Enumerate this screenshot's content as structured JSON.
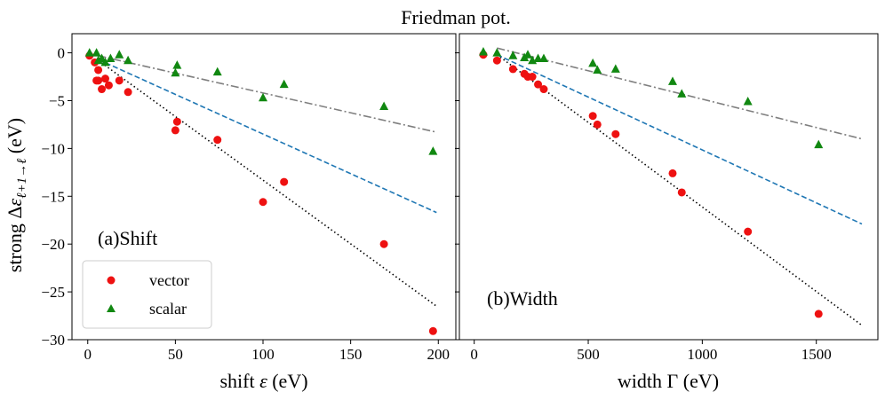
{
  "figure": {
    "suptitle": "Friedman pot.",
    "ylabel": "strong Δεℓ+1→ℓ (eV)",
    "legend": {
      "entries": [
        "vector",
        "scalar"
      ],
      "location": "lower-left"
    },
    "colors": {
      "vector": "#ee1111",
      "scalar": "#118811",
      "fit_vector": "#000000",
      "fit_mid": "#1f77b4",
      "fit_scalar": "#7f7f7f"
    }
  },
  "chart_data": [
    {
      "type": "scatter",
      "panel_label": "(a)Shift",
      "xlabel": "shift ε (eV)",
      "ylabel": "strong Δεℓ+1→ℓ (eV)",
      "xlim": [
        -9,
        210
      ],
      "ylim": [
        -30,
        2
      ],
      "xticks": [
        0,
        50,
        100,
        150,
        200
      ],
      "yticks": [
        0,
        -5,
        -10,
        -15,
        -20,
        -25,
        -30
      ],
      "series": [
        {
          "name": "vector",
          "marker": "circle",
          "x": [
            1,
            4,
            5,
            6,
            6,
            8,
            10,
            12,
            18,
            23,
            50,
            51,
            74,
            100,
            112,
            169,
            197
          ],
          "y": [
            -0.3,
            -1.0,
            -2.9,
            -1.8,
            -2.9,
            -3.8,
            -2.7,
            -3.4,
            -2.9,
            -4.1,
            -8.1,
            -7.2,
            -9.1,
            -15.6,
            -13.5,
            -20.0,
            -29.1
          ]
        },
        {
          "name": "scalar",
          "marker": "triangle",
          "x": [
            1,
            5,
            6,
            8,
            10,
            13,
            18,
            23,
            50,
            51,
            74,
            100,
            112,
            169,
            197
          ],
          "y": [
            0.0,
            0.0,
            -0.8,
            -0.6,
            -1.0,
            -0.6,
            -0.2,
            -0.8,
            -2.1,
            -1.3,
            -2.0,
            -4.7,
            -3.3,
            -5.6,
            -10.3
          ]
        }
      ],
      "fit_lines": [
        {
          "name": "vector-fit",
          "style": "dotted",
          "x": [
            6,
            199
          ],
          "y": [
            -0.8,
            -26.5
          ]
        },
        {
          "name": "mid-fit",
          "style": "dashed",
          "x": [
            6,
            199
          ],
          "y": [
            -0.7,
            -16.7
          ]
        },
        {
          "name": "scalar-fit",
          "style": "dashdot",
          "x": [
            6,
            199
          ],
          "y": [
            -0.3,
            -8.3
          ]
        }
      ]
    },
    {
      "type": "scatter",
      "panel_label": "(b)Width",
      "xlabel": "width Γ (eV)",
      "xlim": [
        -65,
        1770
      ],
      "ylim": [
        -30,
        2
      ],
      "xticks": [
        0,
        500,
        1000,
        1500
      ],
      "yticks": [
        0,
        -5,
        -10,
        -15,
        -20,
        -25,
        -30
      ],
      "series": [
        {
          "name": "vector",
          "marker": "circle",
          "x": [
            40,
            100,
            170,
            220,
            235,
            255,
            280,
            305,
            520,
            540,
            620,
            870,
            910,
            1200,
            1510
          ],
          "y": [
            -0.2,
            -0.8,
            -1.7,
            -2.2,
            -2.5,
            -2.5,
            -3.3,
            -3.8,
            -6.6,
            -7.5,
            -8.5,
            -12.6,
            -14.6,
            -18.7,
            -27.3
          ]
        },
        {
          "name": "scalar",
          "marker": "triangle",
          "x": [
            40,
            100,
            170,
            220,
            235,
            255,
            280,
            305,
            520,
            540,
            620,
            870,
            910,
            1200,
            1510
          ],
          "y": [
            0.1,
            0.0,
            -0.3,
            -0.5,
            -0.2,
            -0.8,
            -0.6,
            -0.6,
            -1.1,
            -1.8,
            -1.7,
            -3.0,
            -4.3,
            -5.1,
            -9.6
          ]
        }
      ],
      "fit_lines": [
        {
          "name": "vector-fit",
          "style": "dotted",
          "x": [
            100,
            1700
          ],
          "y": [
            -0.2,
            -28.5
          ]
        },
        {
          "name": "mid-fit",
          "style": "dashed",
          "x": [
            100,
            1700
          ],
          "y": [
            -0.2,
            -17.9
          ]
        },
        {
          "name": "scalar-fit",
          "style": "dashdot",
          "x": [
            100,
            1700
          ],
          "y": [
            0.5,
            -9.0
          ]
        }
      ]
    }
  ]
}
